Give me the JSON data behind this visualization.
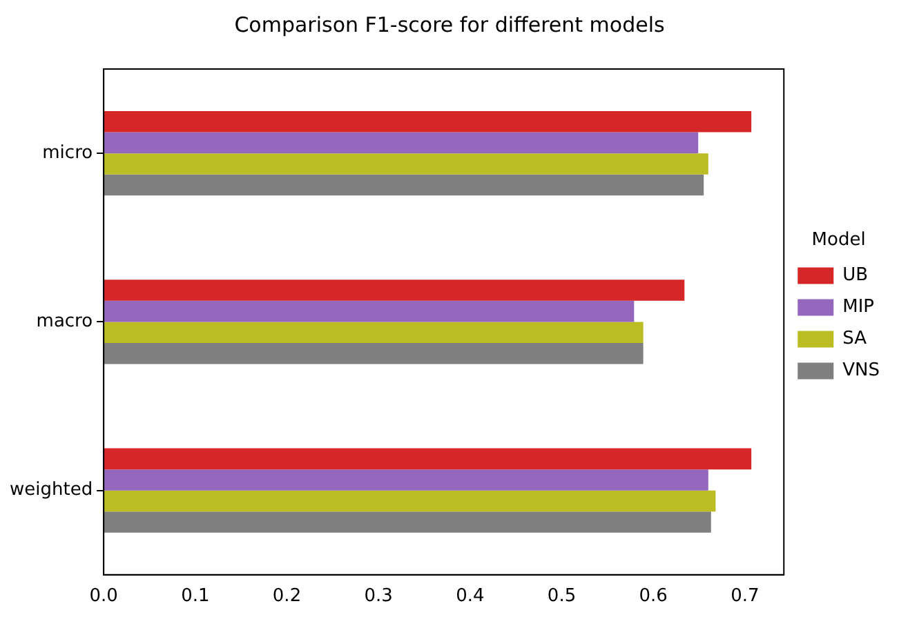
{
  "chart_data": {
    "type": "bar",
    "orientation": "horizontal",
    "title": "Comparison F1-score for different models",
    "legend_title": "Model",
    "categories": [
      "micro",
      "macro",
      "weighted"
    ],
    "series": [
      {
        "name": "UB",
        "color": "#d62728",
        "values": [
          0.707,
          0.634,
          0.707
        ]
      },
      {
        "name": "MIP",
        "color": "#9467bd",
        "values": [
          0.649,
          0.579,
          0.66
        ]
      },
      {
        "name": "SA",
        "color": "#bcbd22",
        "values": [
          0.66,
          0.589,
          0.668
        ]
      },
      {
        "name": "VNS",
        "color": "#7f7f7f",
        "values": [
          0.655,
          0.589,
          0.663
        ]
      }
    ],
    "xlim": [
      0,
      0.7425
    ],
    "xticks": [
      {
        "value": 0,
        "label": "0.0"
      },
      0.1,
      0.2,
      0.3,
      0.4,
      0.5,
      0.6,
      0.7
    ],
    "grid": false,
    "legend": "right"
  }
}
